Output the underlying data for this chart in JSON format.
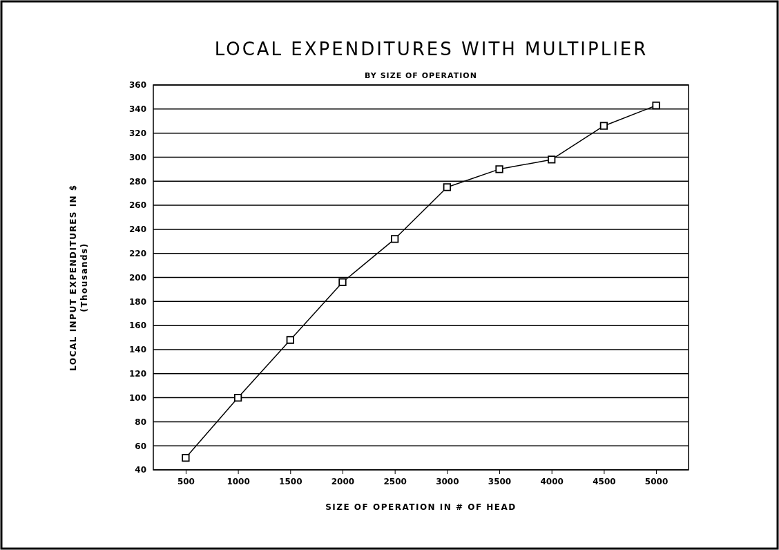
{
  "chart_data": {
    "type": "line",
    "title": "LOCAL EXPENDITURES WITH MULTIPLIER",
    "subtitle": "BY SIZE OF OPERATION",
    "xlabel": "SIZE OF OPERATION IN # OF HEAD",
    "ylabel": "LOCAL INPUT EXPENDITURES IN $\n(Thousands)",
    "categories": [
      "500",
      "1000",
      "1500",
      "2000",
      "2500",
      "3000",
      "3500",
      "4000",
      "4500",
      "5000"
    ],
    "series": [
      {
        "color": "#000000",
        "values": [
          50,
          100,
          148,
          196,
          232,
          275,
          290,
          298,
          326,
          343
        ]
      }
    ],
    "ylim": [
      40,
      360
    ],
    "yticks": [
      40,
      60,
      80,
      100,
      120,
      140,
      160,
      180,
      200,
      220,
      240,
      260,
      280,
      300,
      320,
      340,
      360
    ],
    "grid": "y",
    "marker": "square",
    "line_style": "solid"
  }
}
